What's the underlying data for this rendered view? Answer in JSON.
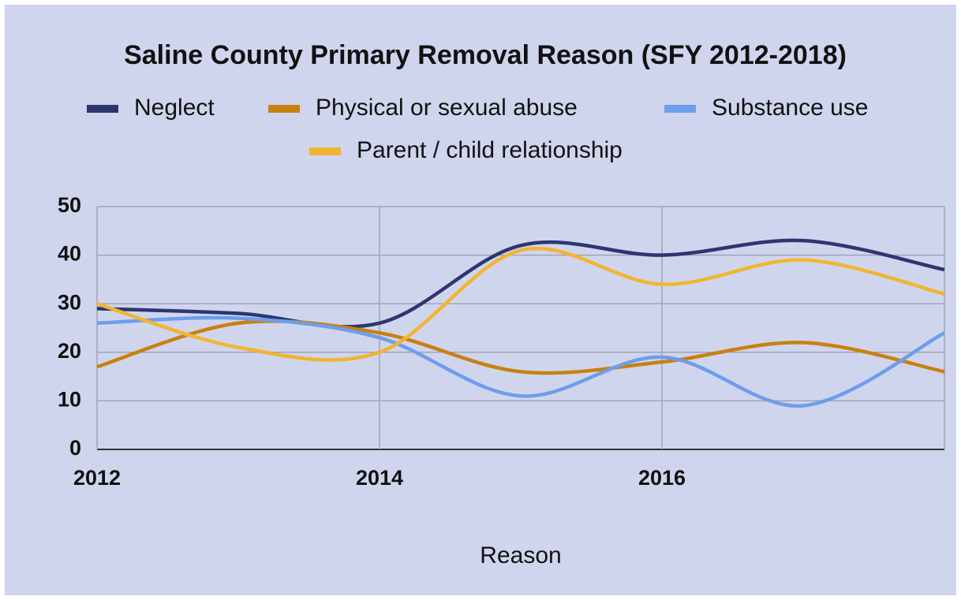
{
  "chart_data": {
    "type": "line",
    "title": "Saline County Primary Removal Reason (SFY 2012-2018)",
    "xlabel": "Reason",
    "x": [
      2012,
      2013,
      2014,
      2015,
      2016,
      2017,
      2018
    ],
    "series": [
      {
        "name": "Neglect",
        "color": "#2d3670",
        "values": [
          29,
          28,
          26,
          42,
          40,
          43,
          37
        ]
      },
      {
        "name": "Physical or sexual abuse",
        "color": "#c8810f",
        "values": [
          17,
          26,
          24,
          16,
          18,
          22,
          16
        ]
      },
      {
        "name": "Substance use",
        "color": "#6d9eeb",
        "values": [
          26,
          27,
          23,
          11,
          19,
          9,
          24
        ]
      },
      {
        "name": "Parent / child relationship",
        "color": "#f1b531",
        "values": [
          30,
          21,
          20,
          41,
          34,
          39,
          32
        ]
      }
    ],
    "xlim": [
      2012,
      2018
    ],
    "xticks": [
      2012,
      2014,
      2016
    ],
    "ylim": [
      0,
      50
    ],
    "yticks": [
      0,
      10,
      20,
      30,
      40,
      50
    ],
    "grid": true,
    "smooth": true,
    "legend": "top"
  }
}
